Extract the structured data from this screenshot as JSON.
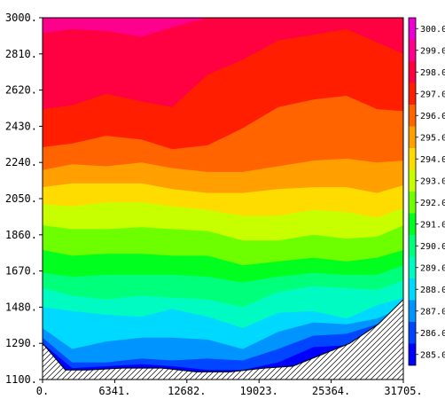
{
  "chart_data": {
    "type": "contour",
    "title": "",
    "xlabel": "",
    "ylabel": "",
    "x_ticks": [
      "0.",
      "6341.",
      "12682.",
      "19023.",
      "25364.",
      "31705."
    ],
    "y_ticks": [
      "1100.",
      "1290.",
      "1480.",
      "1670.",
      "1860.",
      "2050.",
      "2240.",
      "2430.",
      "2620.",
      "2810.",
      "3000."
    ],
    "xlim": [
      0,
      31705
    ],
    "ylim": [
      1100,
      3000
    ],
    "colorbar": {
      "labels": [
        "285.0",
        "286.0",
        "287.0",
        "288.0",
        "289.0",
        "290.0",
        "291.0",
        "292.0",
        "293.0",
        "294.0",
        "295.0",
        "296.0",
        "297.0",
        "298.0",
        "299.0",
        "300.0"
      ],
      "range": [
        284.5,
        300.5
      ]
    },
    "x": [
      0,
      2600,
      5600,
      8700,
      11400,
      14500,
      17600,
      20700,
      23800,
      26700,
      29400,
      31705
    ],
    "levels": [
      {
        "value": 285.5,
        "color": "#0000ff",
        "y": [
          1290,
          1160,
          1170,
          1180,
          1170,
          1150,
          1150,
          1190,
          1270,
          1280,
          1370,
          1480
        ]
      },
      {
        "value": 286.5,
        "color": "#0045ff",
        "y": [
          1320,
          1190,
          1190,
          1210,
          1200,
          1210,
          1200,
          1260,
          1330,
          1340,
          1390,
          1480
        ]
      },
      {
        "value": 287.5,
        "color": "#0094ff",
        "y": [
          1370,
          1260,
          1300,
          1320,
          1320,
          1310,
          1260,
          1350,
          1400,
          1390,
          1420,
          1480
        ]
      },
      {
        "value": 288.5,
        "color": "#00d9ff",
        "y": [
          1480,
          1460,
          1440,
          1430,
          1470,
          1430,
          1370,
          1450,
          1460,
          1420,
          1490,
          1530
        ]
      },
      {
        "value": 289.5,
        "color": "#00fbc2",
        "y": [
          1580,
          1540,
          1520,
          1540,
          1530,
          1520,
          1480,
          1560,
          1590,
          1580,
          1570,
          1620
        ]
      },
      {
        "value": 290.5,
        "color": "#00ff7a",
        "y": [
          1660,
          1640,
          1650,
          1650,
          1650,
          1640,
          1610,
          1640,
          1660,
          1650,
          1650,
          1700
        ]
      },
      {
        "value": 291.5,
        "color": "#00ff1e",
        "y": [
          1780,
          1750,
          1760,
          1760,
          1750,
          1750,
          1700,
          1720,
          1740,
          1720,
          1740,
          1780
        ]
      },
      {
        "value": 292.5,
        "color": "#6dff00",
        "y": [
          1910,
          1890,
          1890,
          1900,
          1890,
          1880,
          1830,
          1830,
          1860,
          1840,
          1850,
          1910
        ]
      },
      {
        "value": 293.5,
        "color": "#c8ff00",
        "y": [
          2020,
          2010,
          2030,
          2030,
          2010,
          1990,
          1960,
          1960,
          1990,
          1980,
          1950,
          2000
        ]
      },
      {
        "value": 294.5,
        "color": "#ffdc00",
        "y": [
          2110,
          2130,
          2130,
          2130,
          2100,
          2080,
          2080,
          2100,
          2110,
          2110,
          2080,
          2120
        ]
      },
      {
        "value": 295.5,
        "color": "#ffa000",
        "y": [
          2200,
          2230,
          2220,
          2240,
          2210,
          2190,
          2190,
          2220,
          2250,
          2260,
          2240,
          2250
        ]
      },
      {
        "value": 296.5,
        "color": "#ff6400",
        "y": [
          2320,
          2340,
          2380,
          2360,
          2310,
          2330,
          2420,
          2530,
          2570,
          2590,
          2520,
          2510
        ]
      },
      {
        "value": 297.5,
        "color": "#ff1e00",
        "y": [
          2520,
          2540,
          2600,
          2560,
          2530,
          2700,
          2780,
          2880,
          2910,
          2940,
          2870,
          2810
        ]
      },
      {
        "value": 298.5,
        "color": "#ff0041",
        "y": [
          2920,
          2940,
          2930,
          2900,
          2950,
          3000,
          3000,
          3000,
          3000,
          3000,
          3000,
          3000
        ]
      },
      {
        "value": 299.5,
        "color": "#ff008c",
        "y": [
          3000,
          3000,
          3000,
          3000,
          3000,
          3000,
          3000,
          3000,
          3000,
          3000,
          3000,
          3000
        ]
      },
      {
        "value": 300.5,
        "color": "#ea00d0",
        "y": [
          3000,
          3000,
          3000,
          3000,
          3000,
          3000,
          3000,
          3000,
          3000,
          3000,
          3000,
          3000
        ]
      }
    ],
    "terrain": {
      "x": [
        0,
        2000,
        4000,
        7000,
        10500,
        13500,
        16500,
        19500,
        22000,
        24500,
        27000,
        29500,
        31705
      ],
      "y": [
        1290,
        1150,
        1150,
        1160,
        1160,
        1140,
        1140,
        1160,
        1170,
        1230,
        1290,
        1390,
        1520
      ]
    }
  }
}
